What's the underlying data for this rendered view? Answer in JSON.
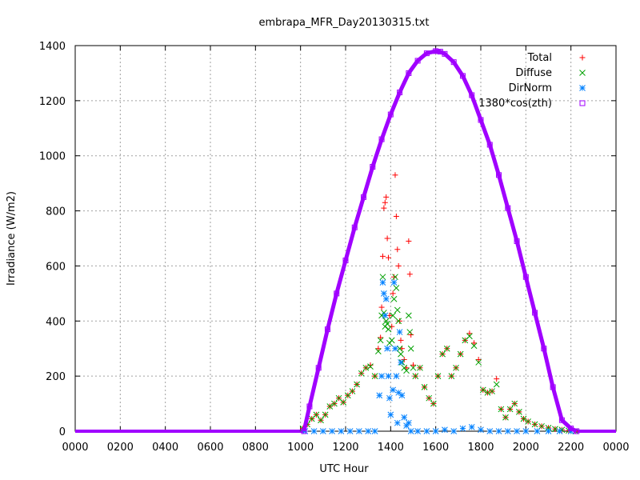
{
  "chart_data": {
    "type": "scatter",
    "title": "embrapa_MFR_Day20130315.txt",
    "xlabel": "UTC Hour",
    "ylabel": "Irradiance (W/m2)",
    "xlim": [
      0,
      24
    ],
    "ylim": [
      0,
      1400
    ],
    "grid": true,
    "legend_position": "top-right",
    "x_tick_labels": [
      "0000",
      "0200",
      "0400",
      "0600",
      "0800",
      "1000",
      "1200",
      "1400",
      "1600",
      "1800",
      "2000",
      "2200",
      "0000"
    ],
    "y_ticks": [
      0,
      200,
      400,
      600,
      800,
      1000,
      1200,
      1400
    ],
    "series": [
      {
        "name": "Total",
        "marker": "plus",
        "color": "#ff0000",
        "x": [
          10.1,
          10.3,
          10.5,
          10.7,
          10.9,
          11.1,
          11.3,
          11.5,
          11.7,
          11.9,
          12.1,
          12.3,
          12.5,
          12.7,
          12.9,
          13.1,
          13.3,
          13.45,
          13.55,
          13.6,
          13.65,
          13.7,
          13.75,
          13.8,
          13.85,
          13.9,
          13.95,
          14.05,
          14.1,
          14.15,
          14.2,
          14.25,
          14.3,
          14.35,
          14.4,
          14.45,
          14.5,
          14.6,
          14.7,
          14.8,
          14.85,
          14.9,
          15.0,
          15.1,
          15.3,
          15.5,
          15.7,
          15.9,
          16.1,
          16.3,
          16.5,
          16.7,
          16.9,
          17.1,
          17.3,
          17.5,
          17.7,
          17.9,
          18.1,
          18.3,
          18.5,
          18.7,
          18.9,
          19.1,
          19.3,
          19.5,
          19.7,
          19.9,
          20.1,
          20.4,
          20.7,
          21.0,
          21.3,
          21.6,
          21.9,
          22.2
        ],
        "y": [
          10,
          25,
          45,
          60,
          40,
          60,
          90,
          100,
          120,
          105,
          130,
          145,
          170,
          210,
          230,
          240,
          200,
          300,
          340,
          450,
          635,
          810,
          830,
          850,
          700,
          630,
          420,
          380,
          500,
          560,
          930,
          780,
          660,
          600,
          400,
          330,
          300,
          260,
          230,
          690,
          570,
          350,
          240,
          200,
          230,
          160,
          120,
          100,
          200,
          280,
          300,
          200,
          230,
          280,
          330,
          355,
          320,
          260,
          150,
          140,
          145,
          190,
          80,
          50,
          80,
          100,
          70,
          45,
          35,
          25,
          18,
          12,
          8,
          5,
          2,
          0
        ]
      },
      {
        "name": "Diffuse",
        "marker": "cross",
        "color": "#00a000",
        "x": [
          10.1,
          10.3,
          10.5,
          10.7,
          10.9,
          11.1,
          11.3,
          11.5,
          11.7,
          11.9,
          12.1,
          12.3,
          12.5,
          12.7,
          12.9,
          13.1,
          13.3,
          13.45,
          13.55,
          13.6,
          13.65,
          13.7,
          13.75,
          13.8,
          13.85,
          13.9,
          13.95,
          14.05,
          14.1,
          14.15,
          14.2,
          14.25,
          14.3,
          14.35,
          14.4,
          14.45,
          14.5,
          14.6,
          14.7,
          14.8,
          14.85,
          14.9,
          15.0,
          15.1,
          15.3,
          15.5,
          15.7,
          15.9,
          16.1,
          16.3,
          16.5,
          16.7,
          16.9,
          17.1,
          17.3,
          17.5,
          17.7,
          17.9,
          18.1,
          18.3,
          18.5,
          18.7,
          18.9,
          19.1,
          19.3,
          19.5,
          19.7,
          19.9,
          20.1,
          20.4,
          20.7,
          21.0,
          21.3,
          21.6,
          21.9,
          22.2
        ],
        "y": [
          10,
          25,
          45,
          60,
          40,
          60,
          90,
          100,
          120,
          105,
          130,
          145,
          170,
          210,
          230,
          235,
          200,
          290,
          330,
          420,
          560,
          430,
          380,
          400,
          390,
          370,
          320,
          330,
          420,
          480,
          560,
          520,
          440,
          400,
          300,
          280,
          250,
          230,
          220,
          420,
          360,
          300,
          230,
          200,
          230,
          160,
          120,
          100,
          200,
          280,
          300,
          200,
          230,
          280,
          330,
          345,
          310,
          250,
          150,
          140,
          145,
          170,
          80,
          50,
          80,
          100,
          70,
          45,
          35,
          25,
          18,
          12,
          8,
          5,
          2,
          0
        ]
      },
      {
        "name": "DirNorm",
        "marker": "star",
        "color": "#0080ff",
        "x": [
          10.2,
          10.6,
          11.0,
          11.4,
          11.8,
          12.2,
          12.6,
          13.0,
          13.3,
          13.5,
          13.6,
          13.65,
          13.7,
          13.75,
          13.8,
          13.85,
          13.9,
          13.95,
          14.0,
          14.1,
          14.15,
          14.2,
          14.25,
          14.3,
          14.35,
          14.4,
          14.45,
          14.5,
          14.6,
          14.7,
          14.8,
          14.9,
          15.2,
          15.6,
          16.0,
          16.4,
          16.8,
          17.2,
          17.6,
          18.0,
          18.4,
          18.8,
          19.2,
          19.6,
          20.0,
          20.5,
          21.0,
          21.5,
          22.0
        ],
        "y": [
          0,
          0,
          0,
          0,
          0,
          0,
          0,
          0,
          0,
          130,
          200,
          540,
          500,
          420,
          480,
          300,
          200,
          120,
          60,
          150,
          540,
          300,
          200,
          30,
          140,
          360,
          250,
          130,
          50,
          20,
          30,
          0,
          0,
          0,
          0,
          5,
          0,
          10,
          15,
          5,
          0,
          0,
          0,
          0,
          0,
          0,
          0,
          0,
          0
        ]
      },
      {
        "name": "1380*cos(zth)",
        "marker": "square",
        "color": "#a000ff",
        "x": [
          10.15,
          10.4,
          10.8,
          11.2,
          11.6,
          12.0,
          12.4,
          12.8,
          13.2,
          13.6,
          14.0,
          14.4,
          14.8,
          15.2,
          15.6,
          16.0,
          16.2,
          16.4,
          16.8,
          17.2,
          17.6,
          18.0,
          18.4,
          18.8,
          19.2,
          19.6,
          20.0,
          20.4,
          20.8,
          21.2,
          21.6,
          22.0,
          22.25
        ],
        "y": [
          0,
          90,
          230,
          370,
          500,
          620,
          740,
          850,
          960,
          1060,
          1150,
          1230,
          1300,
          1345,
          1372,
          1380,
          1378,
          1370,
          1340,
          1290,
          1220,
          1130,
          1040,
          930,
          810,
          690,
          560,
          430,
          300,
          160,
          40,
          10,
          0
        ]
      }
    ]
  }
}
